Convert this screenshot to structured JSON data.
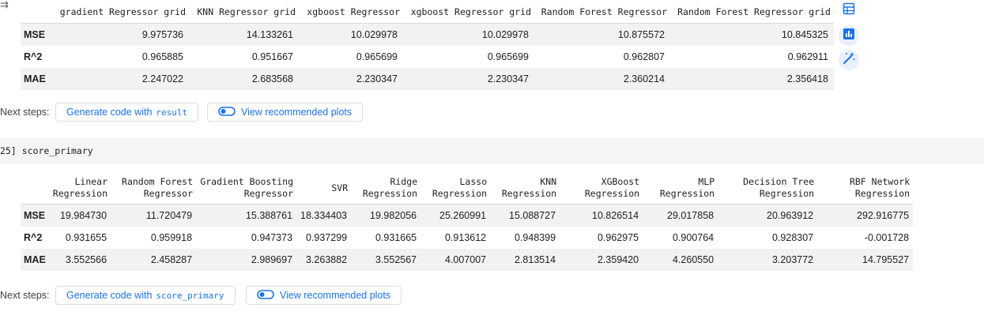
{
  "output_arrow": "⇉",
  "table1": {
    "columns": [
      "",
      "gradient Regressor grid",
      "KNN Regressor grid",
      "xgboost Regressor",
      "xgboost Regressor grid",
      "Random Forest Regressor",
      "Random Forest Regressor grid"
    ],
    "rows": [
      {
        "label": "MSE",
        "values": [
          "9.975736",
          "14.133261",
          "10.029978",
          "10.029978",
          "10.875572",
          "10.845325"
        ]
      },
      {
        "label": "R^2",
        "values": [
          "0.965885",
          "0.951667",
          "0.965699",
          "0.965699",
          "0.962807",
          "0.962911"
        ]
      },
      {
        "label": "MAE",
        "values": [
          "2.247022",
          "2.683568",
          "2.230347",
          "2.230347",
          "2.360214",
          "2.356418"
        ]
      }
    ]
  },
  "side_buttons": [
    {
      "icon": "table-icon"
    },
    {
      "icon": "bar-chart-icon"
    },
    {
      "icon": "magic-wand-icon"
    }
  ],
  "next_steps_1": {
    "label": "Next steps:",
    "generate_prefix": "Generate code with",
    "generate_var": "result",
    "plots_label": "View recommended plots"
  },
  "cell2": {
    "prompt": "25] score_primary"
  },
  "table2": {
    "columns": [
      [
        "Linear",
        "Regression"
      ],
      [
        "Random Forest",
        "Regressor"
      ],
      [
        "Gradient Boosting",
        "Regressor"
      ],
      [
        "SVR"
      ],
      [
        "Ridge",
        "Regression"
      ],
      [
        "Lasso",
        "Regression"
      ],
      [
        "KNN",
        "Regression"
      ],
      [
        "XGBoost",
        "Regression"
      ],
      [
        "MLP",
        "Regression"
      ],
      [
        "Decision Tree",
        "Regression"
      ],
      [
        "RBF Network",
        "Regression"
      ]
    ],
    "rows": [
      {
        "label": "MSE",
        "values": [
          "19.984730",
          "11.720479",
          "15.388761",
          "18.334403",
          "19.982056",
          "25.260991",
          "15.088727",
          "10.826514",
          "29.017858",
          "20.963912",
          "292.916775"
        ]
      },
      {
        "label": "R^2",
        "values": [
          "0.931655",
          "0.959918",
          "0.947373",
          "0.937299",
          "0.931665",
          "0.913612",
          "0.948399",
          "0.962975",
          "0.900764",
          "0.928307",
          "-0.001728"
        ]
      },
      {
        "label": "MAE",
        "values": [
          "3.552566",
          "2.458287",
          "2.989697",
          "3.263882",
          "3.552567",
          "4.007007",
          "2.813514",
          "2.359420",
          "4.260550",
          "3.203772",
          "14.795527"
        ]
      }
    ]
  },
  "next_steps_2": {
    "label": "Next steps:",
    "generate_prefix": "Generate code with",
    "generate_var": "score_primary",
    "plots_label": "View recommended plots"
  },
  "colors": {
    "accent": "#1a73e8",
    "row_alt": "#f2f2f2"
  }
}
